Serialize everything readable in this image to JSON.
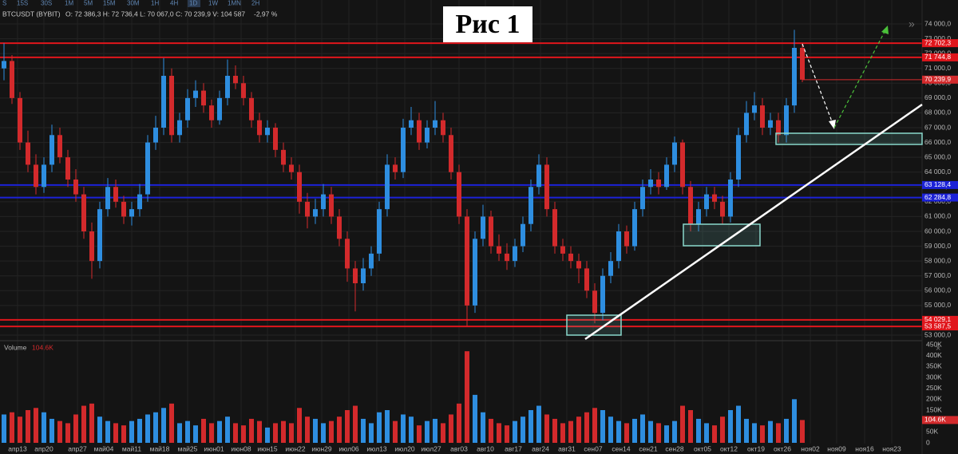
{
  "header": {
    "title": "Рис 1",
    "timeframes": [
      "S",
      "15S",
      "30S",
      "1M",
      "5M",
      "15M",
      "30M",
      "1H",
      "4H",
      "1D",
      "1W",
      "1MN",
      "2H"
    ],
    "active_timeframe": "1D",
    "symbol": "BTCUSDT (BYBIT)",
    "quote": "O: 72 386,3  H: 72 736,4  L: 70 067,0  C: 70 239,9  V: 104 587",
    "change": "-2,97 %"
  },
  "chart_data": {
    "type": "candlestick",
    "up_color": "#2e8ee0",
    "down_color": "#d32a2c",
    "grid": true,
    "xlim": [
      -0.5,
      114.5
    ],
    "xticks": [
      {
        "value": 1.7,
        "label": "апр13"
      },
      {
        "value": 5.0,
        "label": "апр20"
      },
      {
        "value": 9.2,
        "label": "апр27"
      },
      {
        "value": 12.5,
        "label": "май04"
      },
      {
        "value": 16.0,
        "label": "май11"
      },
      {
        "value": 19.5,
        "label": "май18"
      },
      {
        "value": 23.0,
        "label": "май25"
      },
      {
        "value": 26.3,
        "label": "июн01"
      },
      {
        "value": 29.7,
        "label": "июн08"
      },
      {
        "value": 33.0,
        "label": "июн15"
      },
      {
        "value": 36.5,
        "label": "июн22"
      },
      {
        "value": 39.8,
        "label": "июн29"
      },
      {
        "value": 43.2,
        "label": "июл06"
      },
      {
        "value": 46.7,
        "label": "июл13"
      },
      {
        "value": 50.2,
        "label": "июл20"
      },
      {
        "value": 53.5,
        "label": "июл27"
      },
      {
        "value": 57.0,
        "label": "авг03"
      },
      {
        "value": 60.3,
        "label": "авг10"
      },
      {
        "value": 63.8,
        "label": "авг17"
      },
      {
        "value": 67.2,
        "label": "авг24"
      },
      {
        "value": 70.5,
        "label": "авг31"
      },
      {
        "value": 73.8,
        "label": "сен07"
      },
      {
        "value": 77.3,
        "label": "сен14"
      },
      {
        "value": 80.7,
        "label": "сен21"
      },
      {
        "value": 84.0,
        "label": "сен28"
      },
      {
        "value": 87.5,
        "label": "окт05"
      },
      {
        "value": 90.8,
        "label": "окт12"
      },
      {
        "value": 94.2,
        "label": "окт19"
      },
      {
        "value": 97.5,
        "label": "окт26"
      },
      {
        "value": 101.0,
        "label": "ноя02"
      },
      {
        "value": 104.3,
        "label": "ноя09"
      },
      {
        "value": 107.8,
        "label": "ноя16"
      },
      {
        "value": 111.2,
        "label": "ноя23"
      }
    ],
    "ylim": [
      53000,
      74000
    ],
    "yticks": [
      {
        "value": 53000,
        "label": "53 000,0"
      },
      {
        "value": 54000,
        "label": "54 000,0"
      },
      {
        "value": 55000,
        "label": "55 000,0"
      },
      {
        "value": 56000,
        "label": "56 000,0"
      },
      {
        "value": 57000,
        "label": "57 000,0"
      },
      {
        "value": 58000,
        "label": "58 000,0"
      },
      {
        "value": 59000,
        "label": "59 000,0"
      },
      {
        "value": 60000,
        "label": "60 000,0"
      },
      {
        "value": 61000,
        "label": "61 000,0"
      },
      {
        "value": 62000,
        "label": "62 000,0"
      },
      {
        "value": 63000,
        "label": "63 000,0"
      },
      {
        "value": 64000,
        "label": "64 000,0"
      },
      {
        "value": 65000,
        "label": "65 000,0"
      },
      {
        "value": 66000,
        "label": "66 000,0"
      },
      {
        "value": 67000,
        "label": "67 000,0"
      },
      {
        "value": 68000,
        "label": "68 000,0"
      },
      {
        "value": 69000,
        "label": "69 000,0"
      },
      {
        "value": 70000,
        "label": "70 000,0"
      },
      {
        "value": 71000,
        "label": "71 000,0"
      },
      {
        "value": 72000,
        "label": "72 000,0"
      },
      {
        "value": 73000,
        "label": "73 000,0"
      },
      {
        "value": 74000,
        "label": "74 000,0"
      }
    ],
    "levels": [
      {
        "value": 72702.3,
        "label": "72 702,3",
        "color": "#e0161c"
      },
      {
        "value": 71744.8,
        "label": "71 744,8",
        "color": "#e0161c"
      },
      {
        "value": 63128.4,
        "label": "63 128,4",
        "color": "#1c22d8"
      },
      {
        "value": 62284.8,
        "label": "62 284,8",
        "color": "#1c22d8"
      },
      {
        "value": 54029.1,
        "label": "54 029,1",
        "color": "#e0161c"
      },
      {
        "value": 53587.5,
        "label": "53 587,5",
        "color": "#e0161c"
      }
    ],
    "last_price": {
      "value": 70239.9,
      "label": "70 239,9",
      "color": "#d32a2c"
    },
    "ohlc": [
      [
        71000,
        72700,
        70200,
        71500
      ],
      [
        71500,
        71900,
        68600,
        69000
      ],
      [
        69000,
        69400,
        65500,
        66000
      ],
      [
        66000,
        66800,
        64000,
        64500
      ],
      [
        64500,
        65200,
        62500,
        63000
      ],
      [
        63000,
        65000,
        62600,
        64500
      ],
      [
        64500,
        67200,
        64000,
        66500
      ],
      [
        66500,
        67000,
        64600,
        65000
      ],
      [
        65000,
        65500,
        63000,
        63500
      ],
      [
        63500,
        64200,
        62000,
        62500
      ],
      [
        62500,
        63000,
        59500,
        60000
      ],
      [
        60000,
        60600,
        56800,
        58000
      ],
      [
        58000,
        62000,
        57500,
        61500
      ],
      [
        61500,
        63600,
        61000,
        63000
      ],
      [
        63000,
        63500,
        61600,
        62000
      ],
      [
        62000,
        62400,
        60500,
        61000
      ],
      [
        61000,
        62000,
        60400,
        61500
      ],
      [
        61500,
        63200,
        61000,
        62500
      ],
      [
        62500,
        66500,
        62000,
        66000
      ],
      [
        66000,
        67800,
        65500,
        67000
      ],
      [
        67000,
        71700,
        66500,
        70500
      ],
      [
        70500,
        71000,
        66000,
        66500
      ],
      [
        66500,
        68000,
        66000,
        67500
      ],
      [
        67500,
        69600,
        67000,
        69000
      ],
      [
        69000,
        70200,
        68400,
        69500
      ],
      [
        69500,
        70000,
        68000,
        68500
      ],
      [
        68500,
        68900,
        67000,
        67500
      ],
      [
        67500,
        69500,
        67200,
        69000
      ],
      [
        69000,
        71600,
        68500,
        70500
      ],
      [
        70500,
        71200,
        69600,
        70000
      ],
      [
        70000,
        70500,
        68500,
        69000
      ],
      [
        69000,
        69400,
        67000,
        67500
      ],
      [
        67500,
        68000,
        66000,
        66500
      ],
      [
        66500,
        67500,
        66000,
        67000
      ],
      [
        67000,
        67300,
        65000,
        65500
      ],
      [
        65500,
        66000,
        64000,
        64500
      ],
      [
        64500,
        65000,
        63500,
        64000
      ],
      [
        64000,
        64500,
        61200,
        62000
      ],
      [
        62000,
        62600,
        60200,
        61000
      ],
      [
        61000,
        62200,
        60500,
        61500
      ],
      [
        61500,
        63200,
        61000,
        62500
      ],
      [
        62500,
        63000,
        60500,
        61000
      ],
      [
        61000,
        61500,
        59000,
        59500
      ],
      [
        59500,
        60000,
        56600,
        57500
      ],
      [
        57500,
        58000,
        54600,
        56500
      ],
      [
        56500,
        58200,
        56000,
        57500
      ],
      [
        57500,
        59000,
        57000,
        58500
      ],
      [
        58500,
        62000,
        58000,
        61500
      ],
      [
        61500,
        65200,
        61000,
        64500
      ],
      [
        64500,
        65000,
        63500,
        64000
      ],
      [
        64000,
        67600,
        63600,
        67000
      ],
      [
        67000,
        68400,
        66500,
        67500
      ],
      [
        67500,
        68000,
        65500,
        66000
      ],
      [
        66000,
        67500,
        65600,
        67000
      ],
      [
        67000,
        68800,
        66500,
        67500
      ],
      [
        67500,
        68000,
        66000,
        66500
      ],
      [
        66500,
        67000,
        63500,
        64000
      ],
      [
        64000,
        64500,
        60500,
        61000
      ],
      [
        61000,
        61500,
        53600,
        55000
      ],
      [
        55000,
        60000,
        54500,
        59500
      ],
      [
        59500,
        61800,
        59000,
        61000
      ],
      [
        61000,
        61400,
        58500,
        59000
      ],
      [
        59000,
        59800,
        58000,
        58500
      ],
      [
        58500,
        59200,
        57400,
        58000
      ],
      [
        58000,
        59500,
        57600,
        59000
      ],
      [
        59000,
        61000,
        58600,
        60500
      ],
      [
        60500,
        63500,
        60000,
        63000
      ],
      [
        63000,
        65200,
        62500,
        64500
      ],
      [
        64500,
        65000,
        61000,
        61500
      ],
      [
        61500,
        62000,
        58500,
        59000
      ],
      [
        59000,
        59500,
        58000,
        58500
      ],
      [
        58500,
        59000,
        57500,
        58000
      ],
      [
        58000,
        58500,
        56500,
        57500
      ],
      [
        57500,
        58000,
        55500,
        56000
      ],
      [
        56000,
        56500,
        53800,
        54500
      ],
      [
        54500,
        57500,
        54000,
        57000
      ],
      [
        57000,
        58600,
        56500,
        58000
      ],
      [
        58000,
        60500,
        57500,
        60000
      ],
      [
        60000,
        60400,
        58500,
        59000
      ],
      [
        59000,
        62000,
        58700,
        61500
      ],
      [
        61500,
        63500,
        61000,
        63000
      ],
      [
        63000,
        64200,
        62500,
        63500
      ],
      [
        63500,
        64000,
        62500,
        63000
      ],
      [
        63000,
        65000,
        62800,
        64500
      ],
      [
        64500,
        66400,
        64000,
        66000
      ],
      [
        66000,
        66200,
        62500,
        63000
      ],
      [
        63000,
        63400,
        60000,
        60500
      ],
      [
        60500,
        62000,
        60000,
        61500
      ],
      [
        61500,
        63000,
        61000,
        62500
      ],
      [
        62500,
        63000,
        61500,
        62000
      ],
      [
        62000,
        62400,
        60500,
        61000
      ],
      [
        61000,
        64000,
        60600,
        63500
      ],
      [
        63500,
        67000,
        63000,
        66500
      ],
      [
        66500,
        68800,
        66000,
        68000
      ],
      [
        68000,
        69400,
        67500,
        68500
      ],
      [
        68500,
        69000,
        66500,
        67000
      ],
      [
        67000,
        68000,
        66500,
        67500
      ],
      [
        67500,
        68000,
        66000,
        66500
      ],
      [
        66500,
        69000,
        66000,
        68500
      ],
      [
        68500,
        73600,
        68000,
        72386.3
      ],
      [
        72386.3,
        72736.4,
        70067,
        70239.9
      ]
    ],
    "volume": {
      "name": "Volume",
      "last_label": "104.6K",
      "ylim": [
        0,
        450000
      ],
      "yticks": [
        0,
        {
          "value": 50000,
          "label": "50K"
        },
        {
          "value": 100000,
          "label": "100K"
        },
        {
          "value": 150000,
          "label": "150K"
        },
        {
          "value": 200000,
          "label": "200K"
        },
        {
          "value": 250000,
          "label": "250K"
        },
        {
          "value": 300000,
          "label": "300K"
        },
        {
          "value": 350000,
          "label": "350K"
        },
        {
          "value": 400000,
          "label": "400K"
        },
        {
          "value": 450000,
          "label": "450K"
        }
      ],
      "values": [
        130000,
        140000,
        120000,
        150000,
        160000,
        140000,
        110000,
        100000,
        90000,
        130000,
        170000,
        180000,
        120000,
        100000,
        90000,
        80000,
        100000,
        110000,
        130000,
        140000,
        160000,
        180000,
        90000,
        100000,
        80000,
        110000,
        90000,
        100000,
        120000,
        90000,
        80000,
        110000,
        100000,
        70000,
        90000,
        100000,
        90000,
        160000,
        120000,
        110000,
        90000,
        100000,
        120000,
        150000,
        170000,
        110000,
        90000,
        140000,
        150000,
        100000,
        130000,
        120000,
        80000,
        100000,
        110000,
        90000,
        130000,
        180000,
        420000,
        220000,
        140000,
        110000,
        90000,
        80000,
        100000,
        120000,
        150000,
        170000,
        130000,
        110000,
        90000,
        100000,
        120000,
        140000,
        160000,
        150000,
        120000,
        100000,
        90000,
        110000,
        130000,
        100000,
        90000,
        80000,
        100000,
        170000,
        150000,
        110000,
        90000,
        80000,
        120000,
        150000,
        170000,
        110000,
        90000,
        80000,
        100000,
        90000,
        110000,
        200000,
        104587
      ]
    }
  }
}
